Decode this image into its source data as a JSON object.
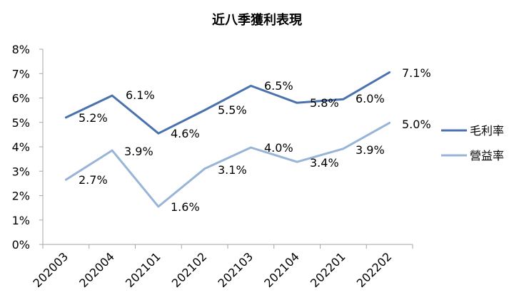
{
  "chart_data": {
    "type": "line",
    "title": "近八季獲利表現",
    "categories": [
      "202003",
      "202004",
      "202101",
      "202102",
      "202103",
      "202104",
      "202201",
      "202202"
    ],
    "y_ticks": [
      "0%",
      "1%",
      "2%",
      "3%",
      "4%",
      "5%",
      "6%",
      "7%",
      "8%"
    ],
    "ylim": [
      0,
      8
    ],
    "grid": false,
    "legend_position": "right",
    "series": [
      {
        "name": "毛利率",
        "color": "#4a72ad",
        "values": [
          5.2,
          6.1,
          4.55,
          5.5,
          6.5,
          5.8,
          5.95,
          7.05
        ],
        "labels": [
          "5.2%",
          "6.1%",
          "4.6%",
          "5.5%",
          "6.5%",
          "5.8%",
          "6.0%",
          "7.1%"
        ]
      },
      {
        "name": "營益率",
        "color": "#98b4d6",
        "values": [
          2.65,
          3.85,
          1.55,
          3.1,
          3.97,
          3.38,
          3.92,
          4.98
        ],
        "labels": [
          "2.7%",
          "3.9%",
          "1.6%",
          "3.1%",
          "4.0%",
          "3.4%",
          "3.9%",
          "5.0%"
        ]
      }
    ]
  }
}
